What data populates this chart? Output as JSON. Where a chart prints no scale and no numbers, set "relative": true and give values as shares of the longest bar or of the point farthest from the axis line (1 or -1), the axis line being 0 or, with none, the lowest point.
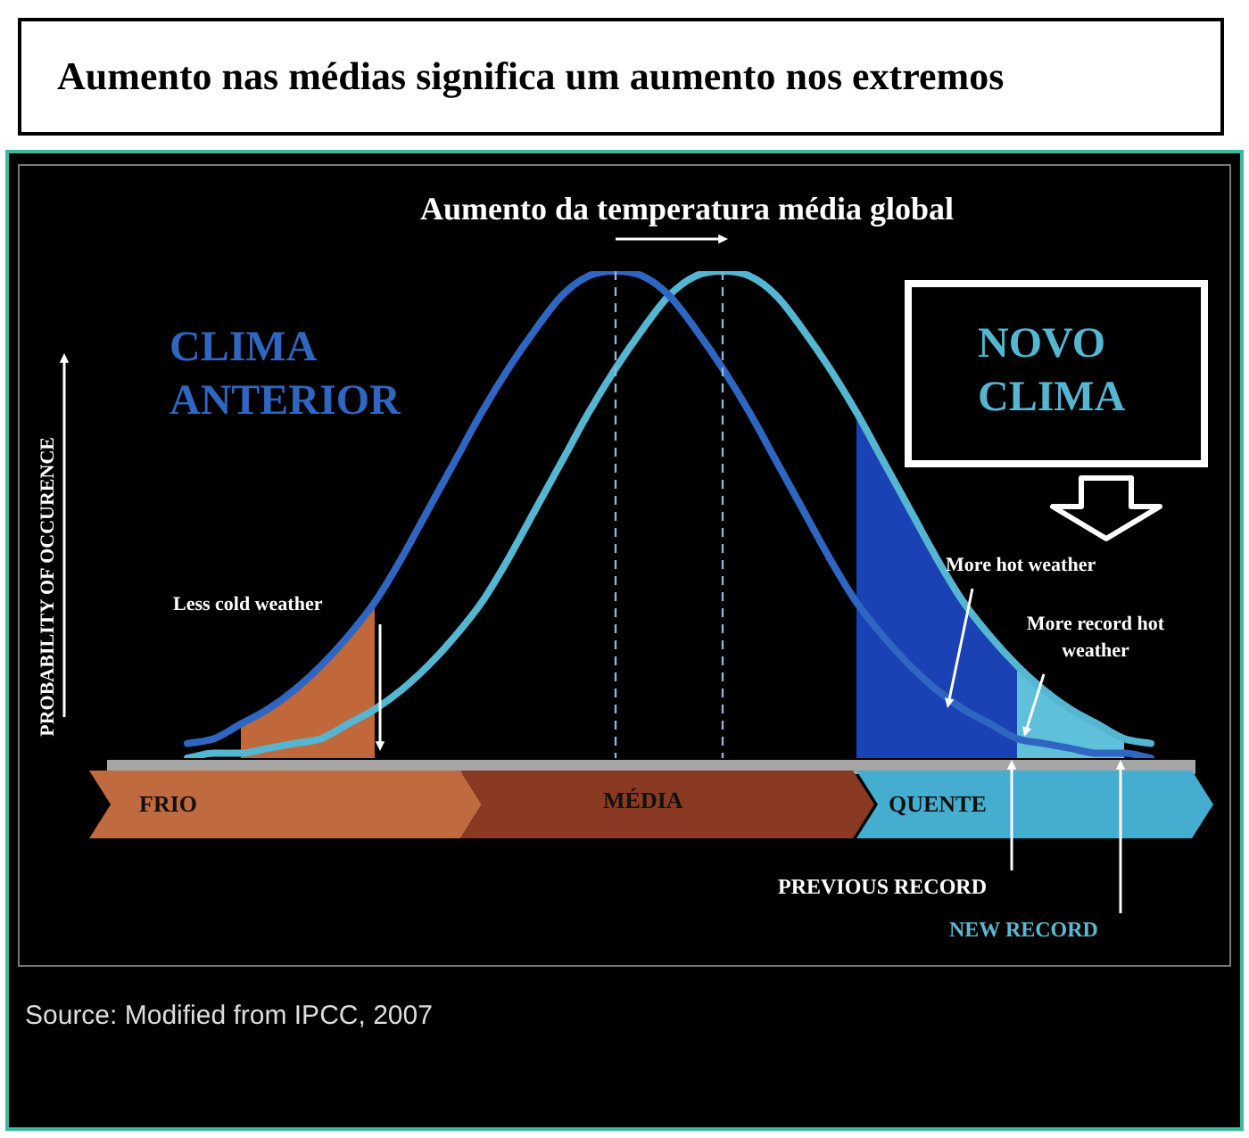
{
  "chart_data": {
    "type": "line",
    "relative": true,
    "title": "Aumento nas médias significa um aumento nos extremos",
    "subtitle": "Aumento da temperatura média global",
    "categories": [
      null,
      null,
      null,
      null,
      null,
      null,
      null,
      null,
      null,
      null,
      null,
      null,
      null,
      null,
      null,
      null,
      null,
      null,
      null,
      null,
      null,
      null,
      null,
      null,
      null,
      null,
      null,
      null,
      null,
      null,
      null,
      null,
      null,
      null,
      null,
      null,
      null
    ],
    "marker": "none",
    "series": [
      {
        "type": "area",
        "color": "#c0683a",
        "values": [
          null,
          null,
          0.07,
          0.1,
          0.14,
          0.19,
          0.25,
          0.32,
          null,
          null,
          null,
          null,
          null,
          null,
          null,
          null,
          null,
          null,
          null,
          null,
          null,
          null,
          null,
          null,
          null,
          null,
          null,
          null,
          null,
          null,
          null,
          null,
          null,
          null,
          null,
          null,
          null
        ]
      },
      {
        "type": "area",
        "color": "#1a42b4",
        "values": [
          null,
          null,
          null,
          null,
          null,
          null,
          null,
          null,
          null,
          null,
          null,
          null,
          null,
          null,
          null,
          null,
          null,
          null,
          null,
          null,
          null,
          null,
          null,
          null,
          null,
          0.71,
          0.61,
          0.51,
          0.41,
          0.32,
          0.25,
          0.19,
          null,
          null,
          null,
          null,
          null
        ]
      },
      {
        "type": "area",
        "color": "#5fc0dc",
        "values": [
          null,
          null,
          null,
          null,
          null,
          null,
          null,
          null,
          null,
          null,
          null,
          null,
          null,
          null,
          null,
          null,
          null,
          null,
          null,
          null,
          null,
          null,
          null,
          null,
          null,
          null,
          null,
          null,
          null,
          null,
          null,
          0.19,
          0.14,
          0.1,
          0.07,
          0.04,
          null
        ]
      },
      {
        "name": "CLIMA ANTERIOR",
        "color": "#2f66c2",
        "values": [
          0.03,
          0.04,
          0.07,
          0.1,
          0.14,
          0.19,
          0.25,
          0.32,
          0.41,
          0.51,
          0.61,
          0.71,
          0.8,
          0.88,
          0.95,
          0.99,
          1,
          0.99,
          0.95,
          0.88,
          0.8,
          0.71,
          0.61,
          0.51,
          0.41,
          0.32,
          0.25,
          0.19,
          0.14,
          0.1,
          0.07,
          0.04,
          0.03,
          0.02,
          0.01,
          0.01,
          0
        ]
      },
      {
        "name": "NOVO CLIMA",
        "color": "#55b6d2",
        "values": [
          0,
          0.01,
          0.01,
          0.02,
          0.03,
          0.04,
          0.07,
          0.1,
          0.14,
          0.19,
          0.25,
          0.32,
          0.41,
          0.51,
          0.61,
          0.71,
          0.8,
          0.88,
          0.95,
          0.99,
          1,
          0.99,
          0.95,
          0.88,
          0.8,
          0.71,
          0.61,
          0.51,
          0.41,
          0.32,
          0.25,
          0.19,
          0.14,
          0.1,
          0.07,
          0.04,
          0.03
        ]
      }
    ],
    "annotations": [
      "Less cold weather",
      "More hot weather",
      "More record hot weather",
      "PREVIOUS RECORD",
      "NEW RECORD",
      "FRIO",
      "MÉDIA",
      "QUENTE",
      "Source: Modified from IPCC, 2007",
      "PROBABILITY OF OCCURENCE"
    ]
  }
}
